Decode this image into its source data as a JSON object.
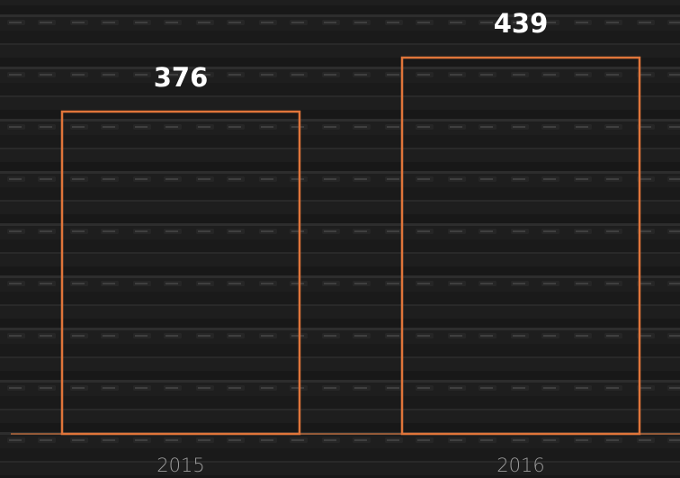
{
  "chart_data": {
    "type": "bar",
    "categories": [
      "2015",
      "2016"
    ],
    "values": [
      376,
      439
    ],
    "color": "#e0753a"
  }
}
